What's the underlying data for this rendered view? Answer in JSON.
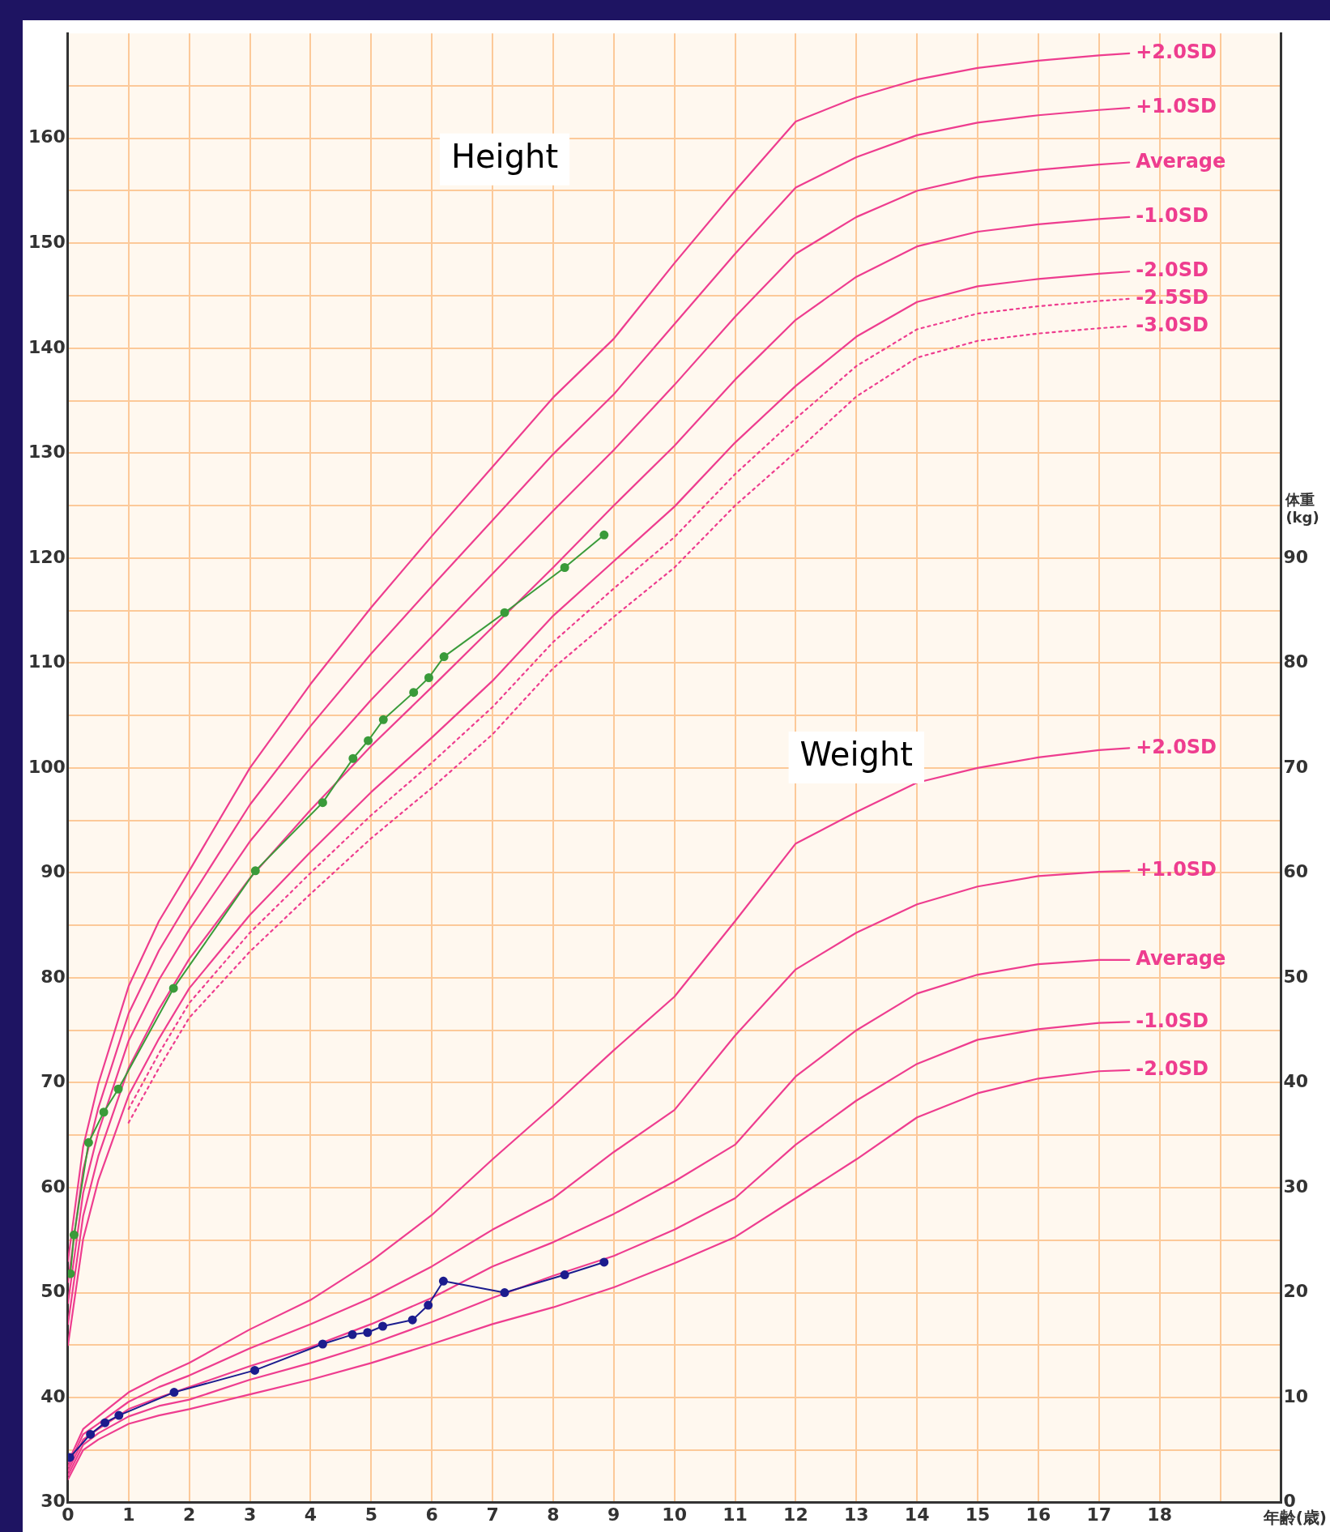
{
  "chart_data": {
    "type": "line",
    "xlabel": "年齢(歳)",
    "y2label": "体重 (kg)",
    "annotations": [
      "Height",
      "Weight"
    ],
    "x": [
      0,
      0.25,
      0.5,
      1,
      1.5,
      2,
      3,
      4,
      5,
      6,
      7,
      8,
      9,
      10,
      11,
      12,
      13,
      14,
      15,
      16,
      17,
      17.5
    ],
    "xlim": [
      0,
      20
    ],
    "xticks": [
      0,
      1,
      2,
      3,
      4,
      5,
      6,
      7,
      8,
      9,
      10,
      11,
      12,
      13,
      14,
      15,
      16,
      17,
      18,
      {
        "value": 19,
        "label": null
      },
      {
        "value": 20,
        "label": null
      }
    ],
    "ylim": [
      30,
      170
    ],
    "yticks": [
      30,
      {
        "value": 35,
        "label": null
      },
      40,
      {
        "value": 45,
        "label": null
      },
      50,
      {
        "value": 55,
        "label": null
      },
      60,
      {
        "value": 65,
        "label": null
      },
      70,
      {
        "value": 75,
        "label": null
      },
      80,
      {
        "value": 85,
        "label": null
      },
      90,
      {
        "value": 95,
        "label": null
      },
      100,
      {
        "value": 105,
        "label": null
      },
      110,
      {
        "value": 115,
        "label": null
      },
      120,
      {
        "value": 125,
        "label": null
      },
      130,
      {
        "value": 135,
        "label": null
      },
      140,
      {
        "value": 145,
        "label": null
      },
      150,
      {
        "value": 155,
        "label": null
      },
      160,
      {
        "value": 165,
        "label": null
      }
    ],
    "y2lim": [
      0,
      140
    ],
    "y2ticks": [
      0,
      10,
      20,
      30,
      40,
      50,
      60,
      70,
      80,
      90
    ],
    "grid": true,
    "legend": false,
    "series": [
      {
        "name": "+2.0SD",
        "color": "#ee3d8f",
        "marker": "none",
        "line_style": "solid",
        "values": [
          53.0,
          63.9,
          69.9,
          79.2,
          85.4,
          90.2,
          100.0,
          108.0,
          115.3,
          122.1,
          128.7,
          135.3,
          140.9,
          148.1,
          155.0,
          161.6,
          163.9,
          165.6,
          166.7,
          167.4,
          167.9,
          168.1
        ]
      },
      {
        "name": "+1.0SD",
        "color": "#ee3d8f",
        "marker": "none",
        "line_style": "solid",
        "values": [
          51.0,
          61.7,
          67.6,
          76.6,
          82.6,
          87.4,
          96.5,
          104.0,
          110.9,
          117.3,
          123.6,
          129.9,
          135.6,
          142.3,
          149.0,
          155.3,
          158.2,
          160.3,
          161.5,
          162.2,
          162.7,
          162.9
        ]
      },
      {
        "name": "Average",
        "color": "#ee3d8f",
        "marker": "none",
        "line_style": "solid",
        "values": [
          49.0,
          59.5,
          65.3,
          74.0,
          79.8,
          84.6,
          93.0,
          100.0,
          106.5,
          112.5,
          118.5,
          124.5,
          130.3,
          136.5,
          143.0,
          149.0,
          152.5,
          155.0,
          156.3,
          157.0,
          157.5,
          157.7
        ]
      },
      {
        "name": "-1.0SD",
        "color": "#ee3d8f",
        "marker": "none",
        "line_style": "solid",
        "values": [
          47.0,
          57.3,
          63.0,
          71.4,
          77.0,
          81.8,
          89.5,
          96.0,
          102.1,
          107.7,
          113.4,
          119.1,
          125.0,
          130.7,
          137.0,
          142.7,
          146.8,
          149.7,
          151.1,
          151.8,
          152.3,
          152.5
        ]
      },
      {
        "name": "-2.0SD",
        "color": "#ee3d8f",
        "marker": "none",
        "line_style": "solid",
        "values": [
          45.0,
          55.1,
          60.7,
          68.8,
          74.2,
          79.0,
          86.0,
          92.0,
          97.7,
          102.9,
          108.3,
          114.5,
          119.7,
          124.9,
          131.0,
          136.4,
          141.1,
          144.4,
          145.9,
          146.6,
          147.1,
          147.3
        ]
      },
      {
        "name": "-2.5SD",
        "color": "#ee3d8f",
        "marker": "none",
        "line_style": "dotted",
        "values": [
          null,
          null,
          null,
          67.5,
          72.8,
          77.6,
          84.3,
          90.0,
          95.5,
          100.5,
          105.8,
          112.0,
          117.1,
          122.0,
          128.0,
          133.3,
          138.3,
          141.8,
          143.3,
          144.0,
          144.5,
          144.7
        ]
      },
      {
        "name": "-3.0SD",
        "color": "#ee3d8f",
        "marker": "none",
        "line_style": "dotted",
        "values": [
          null,
          null,
          null,
          66.2,
          71.4,
          76.2,
          82.5,
          88.0,
          93.3,
          98.1,
          103.2,
          109.5,
          114.4,
          119.1,
          125.0,
          130.1,
          135.4,
          139.1,
          140.7,
          141.4,
          141.9,
          142.1
        ]
      },
      {
        "name": "+2.0SD",
        "color": "#ee3d8f",
        "axis": "y2",
        "marker": "none",
        "line_style": "solid",
        "values": [
          3.8,
          7.0,
          8.2,
          10.5,
          12.0,
          13.3,
          16.5,
          19.3,
          23.0,
          27.4,
          32.7,
          37.8,
          43.1,
          48.2,
          55.4,
          62.8,
          65.8,
          68.6,
          70.0,
          71.0,
          71.7,
          71.9
        ]
      },
      {
        "name": "+1.0SD",
        "color": "#ee3d8f",
        "axis": "y2",
        "marker": "none",
        "line_style": "solid",
        "values": [
          3.4,
          6.5,
          7.5,
          9.6,
          11.0,
          12.1,
          14.7,
          17.0,
          19.5,
          22.5,
          26.0,
          29.0,
          33.4,
          37.4,
          44.5,
          50.8,
          54.3,
          57.0,
          58.7,
          59.7,
          60.1,
          60.2
        ]
      },
      {
        "name": "Average",
        "color": "#ee3d8f",
        "axis": "y2",
        "marker": "none",
        "line_style": "solid",
        "values": [
          3.0,
          6.0,
          7.0,
          8.9,
          10.0,
          11.0,
          13.0,
          14.8,
          17.0,
          19.5,
          22.5,
          24.8,
          27.5,
          30.6,
          34.1,
          40.6,
          45.0,
          48.5,
          50.3,
          51.3,
          51.7,
          51.7
        ]
      },
      {
        "name": "-1.0SD",
        "color": "#ee3d8f",
        "axis": "y2",
        "marker": "none",
        "line_style": "solid",
        "values": [
          2.6,
          5.5,
          6.6,
          8.2,
          9.2,
          9.8,
          11.7,
          13.3,
          15.1,
          17.2,
          19.5,
          21.6,
          23.5,
          26.0,
          29.0,
          34.1,
          38.3,
          41.8,
          44.1,
          45.1,
          45.7,
          45.8
        ]
      },
      {
        "name": "-2.0SD",
        "color": "#ee3d8f",
        "axis": "y2",
        "marker": "none",
        "line_style": "solid",
        "values": [
          2.2,
          5.0,
          6.0,
          7.5,
          8.3,
          8.9,
          10.3,
          11.7,
          13.3,
          15.1,
          17.0,
          18.6,
          20.5,
          22.8,
          25.3,
          29.0,
          32.7,
          36.7,
          39.0,
          40.4,
          41.1,
          41.2
        ]
      },
      {
        "color": "#3a9b3a",
        "marker": "circle",
        "line_style": "solid",
        "x": [
          0.04,
          0.1,
          0.34,
          0.59,
          0.83,
          1.74,
          3.09,
          4.2,
          4.7,
          4.95,
          5.2,
          5.7,
          5.95,
          6.2,
          7.2,
          8.19,
          8.84
        ],
        "values": [
          51.8,
          55.5,
          64.3,
          67.2,
          69.4,
          79.0,
          90.2,
          96.7,
          100.9,
          102.6,
          104.6,
          107.2,
          108.6,
          110.6,
          114.8,
          119.1,
          122.2
        ]
      },
      {
        "color": "#1c1c8e",
        "axis": "y2",
        "marker": "circle",
        "line_style": "solid",
        "x": [
          0.03,
          0.37,
          0.61,
          0.84,
          1.75,
          3.08,
          4.2,
          4.69,
          4.94,
          5.19,
          5.68,
          5.94,
          6.19,
          7.2,
          8.19,
          8.84
        ],
        "values": [
          4.3,
          6.5,
          7.6,
          8.3,
          10.5,
          12.6,
          15.1,
          16.0,
          16.2,
          16.8,
          17.4,
          18.8,
          21.1,
          20.0,
          21.7,
          22.9
        ]
      }
    ]
  }
}
